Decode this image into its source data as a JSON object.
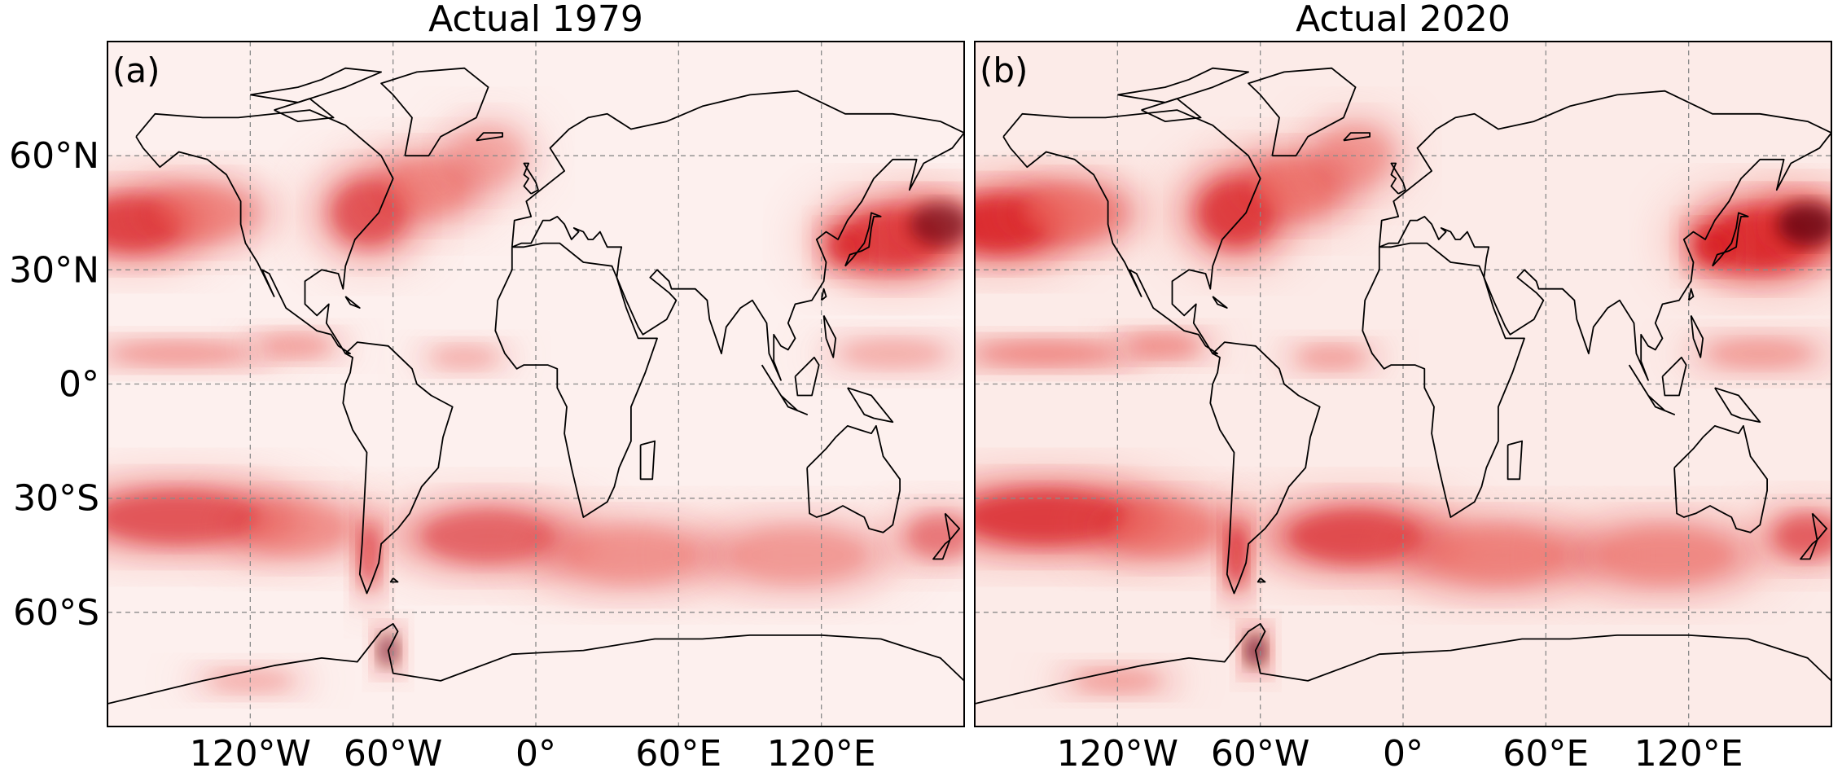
{
  "panels": [
    {
      "title": "Actual 1979",
      "label": "(a)",
      "year": 1979
    },
    {
      "title": "Actual 2020",
      "label": "(b)",
      "year": 2020
    }
  ],
  "axes": {
    "lat_ticks": [
      "60°N",
      "30°N",
      "0°",
      "30°S",
      "60°S"
    ],
    "lat_values": [
      60,
      30,
      0,
      -30,
      -60
    ],
    "lon_ticks": [
      "120°W",
      "60°W",
      "0°",
      "60°E",
      "120°E"
    ],
    "lon_values": [
      -120,
      -60,
      0,
      60,
      120
    ],
    "lon_range": [
      -180,
      180
    ],
    "lat_range": [
      -90,
      90
    ],
    "grid": "dashed"
  },
  "colors": {
    "low": "#ffffff",
    "mid": "#ef6a5e",
    "high": "#d6141a",
    "max": "#5a0608",
    "coast": "#000000",
    "grid": "#8a8a8a"
  }
}
